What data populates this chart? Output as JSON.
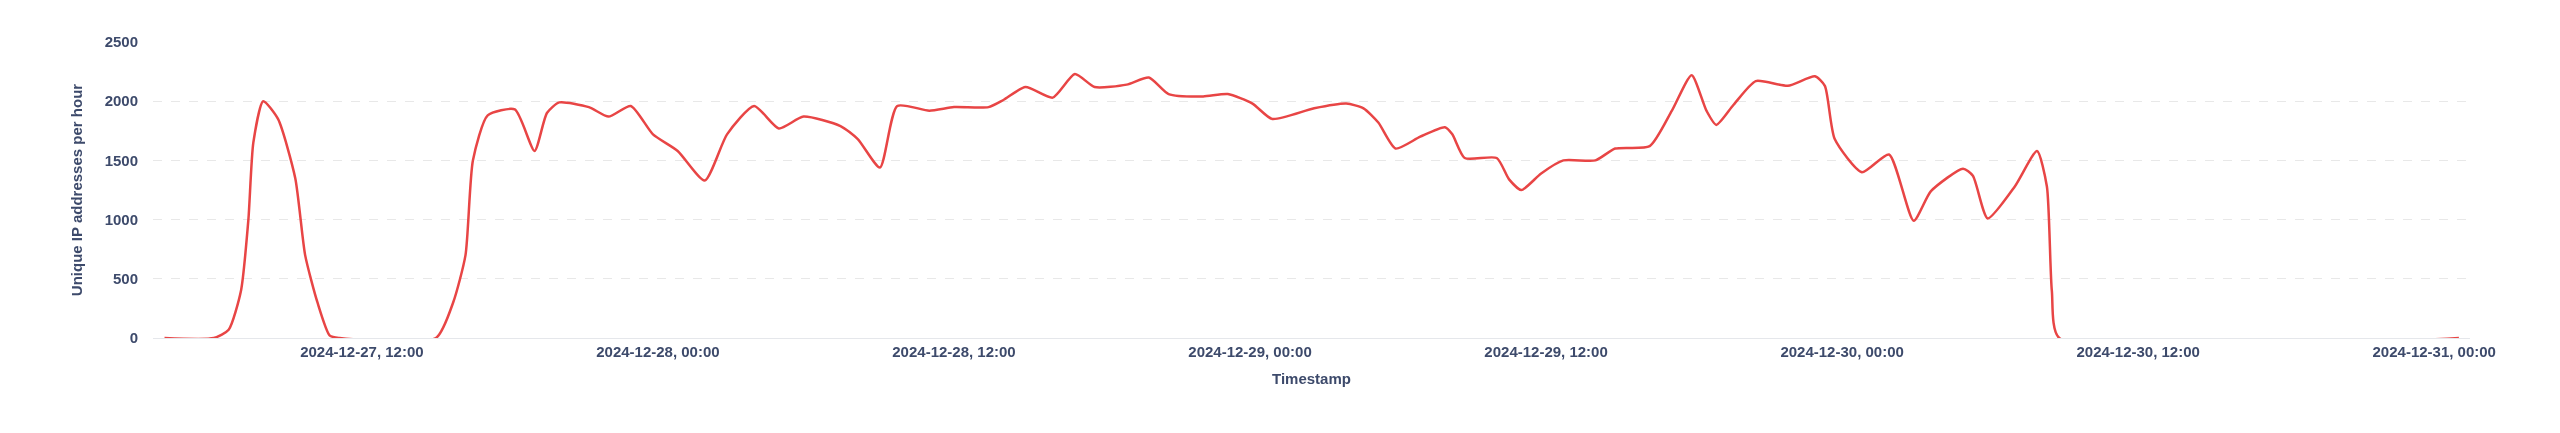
{
  "chart_data": {
    "type": "line",
    "xlabel": "Timestamp",
    "ylabel": "Unique IP addresses per hour",
    "x": [
      "2024-12-27T04:00",
      "2024-12-27T06:00",
      "2024-12-27T06:36",
      "2024-12-27T07:06",
      "2024-12-27T07:24",
      "2024-12-27T07:36",
      "2024-12-27T08:00",
      "2024-12-27T08:36",
      "2024-12-27T09:18",
      "2024-12-27T09:42",
      "2024-12-27T10:12",
      "2024-12-27T10:42",
      "2024-12-27T11:06",
      "2024-12-27T15:00",
      "2024-12-27T15:42",
      "2024-12-27T16:12",
      "2024-12-27T16:30",
      "2024-12-27T17:06",
      "2024-12-27T18:12",
      "2024-12-27T19:00",
      "2024-12-27T19:30",
      "2024-12-27T20:00",
      "2024-12-27T21:12",
      "2024-12-27T22:00",
      "2024-12-27T22:54",
      "2024-12-27T23:48",
      "2024-12-28T00:48",
      "2024-12-28T01:54",
      "2024-12-28T02:48",
      "2024-12-28T03:54",
      "2024-12-28T04:54",
      "2024-12-28T05:54",
      "2024-12-28T07:24",
      "2024-12-28T08:06",
      "2024-12-28T09:00",
      "2024-12-28T09:42",
      "2024-12-28T11:00",
      "2024-12-28T12:00",
      "2024-12-28T13:24",
      "2024-12-28T14:00",
      "2024-12-28T14:54",
      "2024-12-28T16:00",
      "2024-12-28T16:54",
      "2024-12-28T17:42",
      "2024-12-28T19:00",
      "2024-12-28T19:54",
      "2024-12-28T20:42",
      "2024-12-28T22:06",
      "2024-12-28T23:06",
      "2024-12-29T00:06",
      "2024-12-29T00:54",
      "2024-12-29T02:36",
      "2024-12-29T03:54",
      "2024-12-29T04:36",
      "2024-12-29T05:12",
      "2024-12-29T05:54",
      "2024-12-29T06:54",
      "2024-12-29T07:54",
      "2024-12-29T08:12",
      "2024-12-29T08:42",
      "2024-12-29T10:00",
      "2024-12-29T10:30",
      "2024-12-29T11:00",
      "2024-12-29T11:48",
      "2024-12-29T12:42",
      "2024-12-29T14:00",
      "2024-12-29T14:48",
      "2024-12-29T16:12",
      "2024-12-29T17:06",
      "2024-12-29T17:54",
      "2024-12-29T18:30",
      "2024-12-29T18:54",
      "2024-12-29T19:36",
      "2024-12-29T20:30",
      "2024-12-29T21:48",
      "2024-12-29T22:54",
      "2024-12-29T23:18",
      "2024-12-29T23:42",
      "2024-12-30T00:48",
      "2024-12-30T01:54",
      "2024-12-30T02:54",
      "2024-12-30T03:36",
      "2024-12-30T04:54",
      "2024-12-30T05:18",
      "2024-12-30T05:54",
      "2024-12-30T07:00",
      "2024-12-30T07:54",
      "2024-12-30T08:18",
      "2024-12-30T08:30",
      "2024-12-30T08:48",
      "2024-12-31T01:00"
    ],
    "series": [
      {
        "color": "#e84545",
        "values": [
          0,
          0,
          70,
          400,
          1000,
          1650,
          2000,
          1850,
          1350,
          700,
          300,
          20,
          0,
          0,
          300,
          700,
          1500,
          1880,
          1930,
          1580,
          1900,
          1990,
          1950,
          1870,
          1960,
          1720,
          1580,
          1330,
          1720,
          1960,
          1770,
          1870,
          1790,
          1680,
          1440,
          1960,
          1920,
          1950,
          1950,
          2010,
          2120,
          2030,
          2230,
          2120,
          2140,
          2200,
          2060,
          2040,
          2060,
          1980,
          1850,
          1940,
          1980,
          1940,
          1820,
          1600,
          1700,
          1780,
          1720,
          1520,
          1520,
          1340,
          1250,
          1390,
          1500,
          1500,
          1600,
          1620,
          1920,
          2220,
          1920,
          1800,
          1970,
          2170,
          2130,
          2210,
          2130,
          1680,
          1400,
          1550,
          990,
          1240,
          1430,
          1370,
          1010,
          1280,
          1580,
          1280,
          400,
          0,
          0
        ]
      }
    ],
    "xlim": [
      "2024-12-27T03:32",
      "2024-12-31T01:27"
    ],
    "xticks": [
      {
        "value": "2024-12-27T12:00",
        "label": "2024-12-27, 12:00"
      },
      {
        "value": "2024-12-28T00:00",
        "label": "2024-12-28, 00:00"
      },
      {
        "value": "2024-12-28T12:00",
        "label": "2024-12-28, 12:00"
      },
      {
        "value": "2024-12-29T00:00",
        "label": "2024-12-29, 00:00"
      },
      {
        "value": "2024-12-29T12:00",
        "label": "2024-12-29, 12:00"
      },
      {
        "value": "2024-12-30T00:00",
        "label": "2024-12-30, 00:00"
      },
      {
        "value": "2024-12-30T12:00",
        "label": "2024-12-30, 12:00"
      },
      {
        "value": "2024-12-31T00:00",
        "label": "2024-12-31, 00:00"
      }
    ],
    "ylim": [
      0,
      2500
    ],
    "yticks": [
      0,
      500,
      1000,
      1500,
      2000,
      2500
    ],
    "grid": "y",
    "marker": "none",
    "line_style": "solid"
  }
}
